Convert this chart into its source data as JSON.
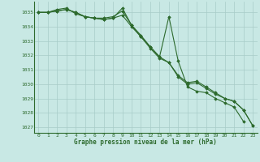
{
  "x": [
    0,
    1,
    2,
    3,
    4,
    5,
    6,
    7,
    8,
    9,
    10,
    11,
    12,
    13,
    14,
    15,
    16,
    17,
    18,
    19,
    20,
    21,
    22,
    23
  ],
  "line1": [
    1035.0,
    1035.0,
    1035.2,
    1035.3,
    1034.9,
    1034.7,
    1034.6,
    1034.6,
    1034.7,
    1035.1,
    1034.1,
    1033.3,
    1032.6,
    1031.9,
    1034.7,
    1031.6,
    1029.8,
    1029.5,
    1029.4,
    1029.0,
    1028.7,
    1028.4,
    1027.4,
    null
  ],
  "line2": [
    1035.0,
    1035.0,
    1035.1,
    1035.2,
    1035.0,
    1034.7,
    1034.6,
    1034.5,
    1034.6,
    1034.8,
    1034.0,
    1033.3,
    1032.5,
    1031.8,
    1031.5,
    1030.5,
    1030.0,
    1030.1,
    1029.7,
    1029.3,
    1029.0,
    1028.8,
    1028.2,
    1027.1
  ],
  "line3": [
    1035.0,
    1035.0,
    1035.1,
    1035.2,
    1035.0,
    1034.7,
    1034.6,
    1034.5,
    1034.6,
    1035.3,
    1034.1,
    1033.4,
    1032.6,
    1031.9,
    1031.5,
    1030.6,
    1030.1,
    1030.2,
    1029.8,
    1029.4,
    1029.0,
    1028.8,
    1028.2,
    1027.1
  ],
  "line_color": "#2d6a2d",
  "bg_color": "#c8e8e4",
  "grid_color": "#a8ccc8",
  "xlabel": "Graphe pression niveau de la mer (hPa)",
  "ylim": [
    1026.6,
    1035.75
  ],
  "yticks": [
    1027,
    1028,
    1029,
    1030,
    1031,
    1032,
    1033,
    1034,
    1035
  ],
  "xticks": [
    0,
    1,
    2,
    3,
    4,
    5,
    6,
    7,
    8,
    9,
    10,
    11,
    12,
    13,
    14,
    15,
    16,
    17,
    18,
    19,
    20,
    21,
    22,
    23
  ]
}
